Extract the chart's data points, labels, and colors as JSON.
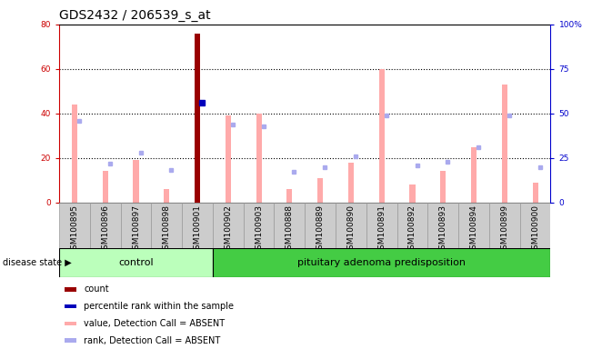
{
  "title": "GDS2432 / 206539_s_at",
  "samples": [
    "GSM100895",
    "GSM100896",
    "GSM100897",
    "GSM100898",
    "GSM100901",
    "GSM100902",
    "GSM100903",
    "GSM100888",
    "GSM100889",
    "GSM100890",
    "GSM100891",
    "GSM100892",
    "GSM100893",
    "GSM100894",
    "GSM100899",
    "GSM100900"
  ],
  "value_bars": [
    44,
    14,
    19,
    6,
    76,
    39,
    40,
    6,
    11,
    18,
    60,
    8,
    14,
    25,
    53,
    9
  ],
  "rank_dots": [
    46,
    22,
    28,
    18,
    56,
    44,
    43,
    17,
    20,
    26,
    49,
    21,
    23,
    31,
    49,
    20
  ],
  "value_bar_color": "#ffaaaa",
  "rank_dot_color": "#aaaaee",
  "count_bar_index": 4,
  "count_bar_value": 76,
  "count_bar_color": "#990000",
  "count_dot_value": 56,
  "count_dot_color": "#0000bb",
  "ylim_left": [
    0,
    80
  ],
  "ylim_right": [
    0,
    100
  ],
  "yticks_left": [
    0,
    20,
    40,
    60,
    80
  ],
  "ytick_labels_right": [
    "0",
    "25",
    "50",
    "75",
    "100%"
  ],
  "grid_values": [
    20,
    40,
    60
  ],
  "control_count": 5,
  "control_label": "control",
  "disease_label": "pituitary adenoma predisposition",
  "disease_state_label": "disease state",
  "control_color": "#bbffbb",
  "disease_color": "#44cc44",
  "group_bar_bg": "#cccccc",
  "legend_items": [
    {
      "color": "#990000",
      "label": "count"
    },
    {
      "color": "#0000bb",
      "label": "percentile rank within the sample"
    },
    {
      "color": "#ffaaaa",
      "label": "value, Detection Call = ABSENT"
    },
    {
      "color": "#aaaaee",
      "label": "rank, Detection Call = ABSENT"
    }
  ],
  "left_axis_color": "#cc0000",
  "right_axis_color": "#0000cc",
  "title_fontsize": 10,
  "tick_fontsize": 6.5,
  "label_fontsize": 8,
  "bar_width": 0.18
}
